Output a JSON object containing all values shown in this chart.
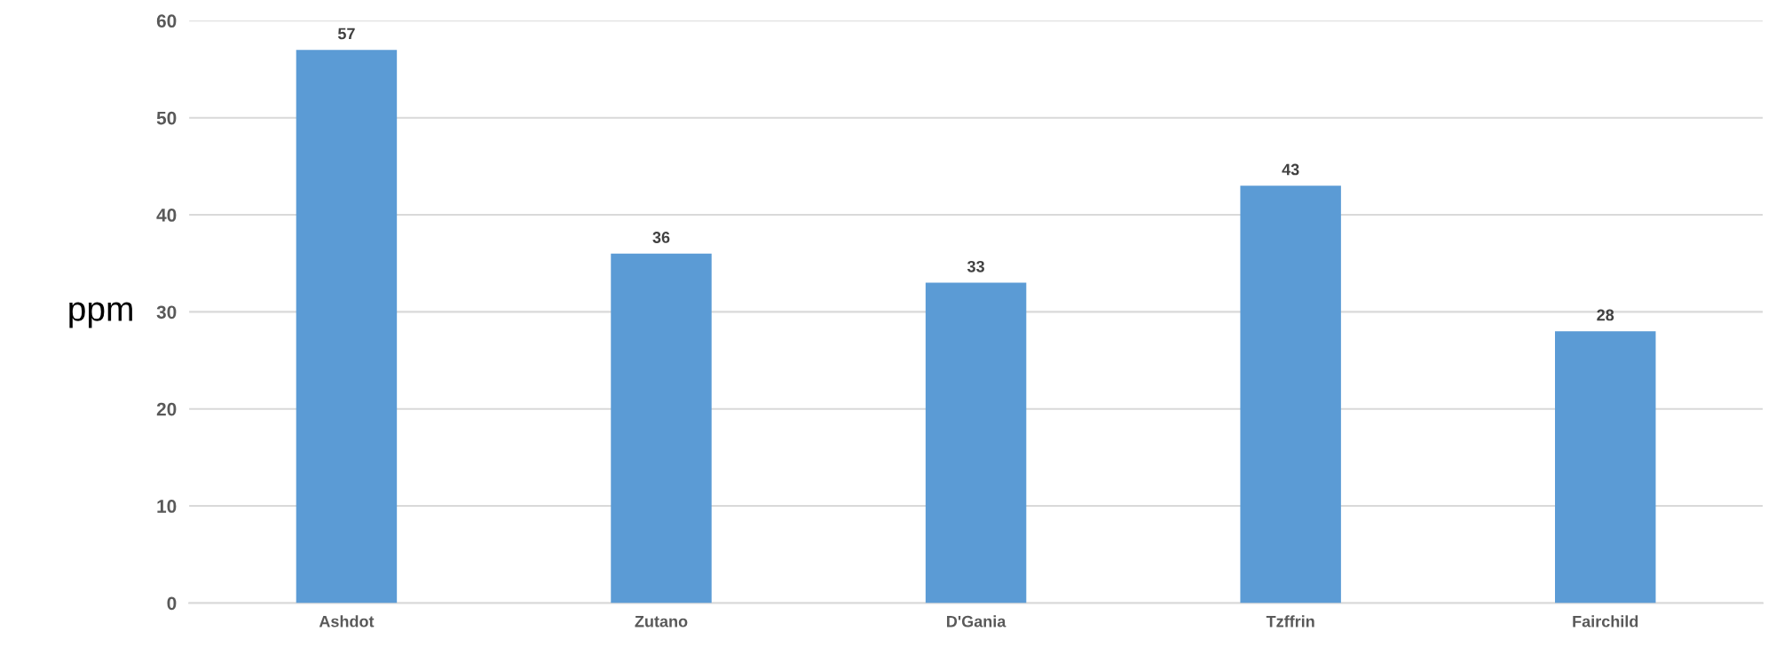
{
  "chart_data": {
    "type": "bar",
    "ylabel": "ppm",
    "categories": [
      "Ashdot",
      "Zutano",
      "D'Gania",
      "Tzffrin",
      "Fairchild"
    ],
    "values": [
      57,
      36,
      33,
      43,
      28
    ],
    "color": "#5b9bd5",
    "ylim": [
      0,
      60
    ],
    "yticks": [
      0,
      10,
      20,
      30,
      40,
      50,
      60
    ],
    "grid": "y",
    "data_labels": true
  }
}
